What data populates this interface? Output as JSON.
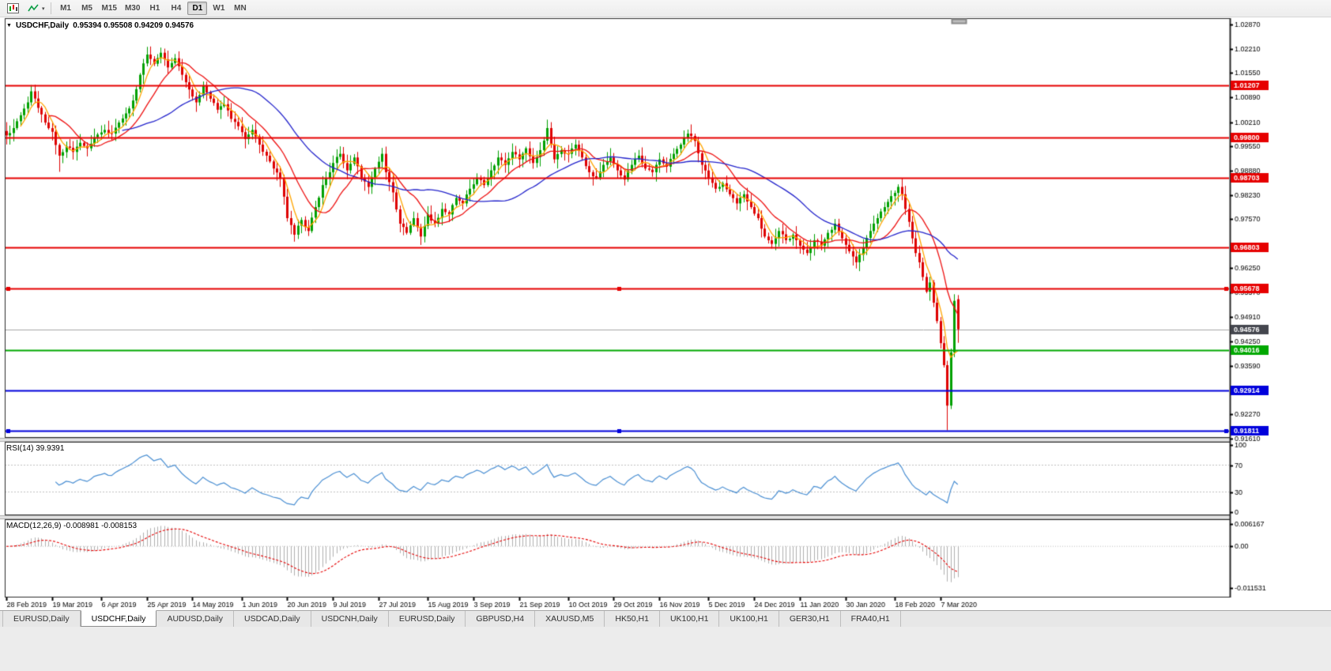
{
  "toolbar": {
    "icons": [
      {
        "name": "chart-window"
      },
      {
        "name": "indicators"
      }
    ],
    "timeframes": [
      "M1",
      "M5",
      "M15",
      "M30",
      "H1",
      "H4",
      "D1",
      "W1",
      "MN"
    ],
    "active_timeframe": "D1"
  },
  "chart": {
    "collapse_icon": "▼",
    "symbol_title": "USDCHF,Daily",
    "ohlc_text": "0.95394 0.95508 0.94209 0.94576"
  },
  "colors": {
    "up": "#00A000",
    "down": "#DE0000",
    "ma_fast": "#FFA500",
    "ma_mid": "#EE1111",
    "ma_slow": "#2424CC",
    "rsi": "#4A8FD3",
    "macd_hist": "#B0B0B0",
    "macd_signal": "#E60000",
    "level_red": "#E60000",
    "level_green": "#00A800",
    "level_blue": "#0000DC",
    "bid_line": "#A8A8A8",
    "bid_label_bg": "#44464E",
    "frame": "#2A2A2A",
    "grid_dash": "#C0C0C0"
  },
  "price_axis": {
    "ticks": [
      "1.02870",
      "1.02210",
      "1.01550",
      "1.00890",
      "1.00210",
      "0.99550",
      "0.98880",
      "0.98230",
      "0.97570",
      "0.96250",
      "0.95570",
      "0.94910",
      "0.94250",
      "0.93590",
      "0.92270",
      "0.91610"
    ]
  },
  "levels": [
    {
      "price": 1.01207,
      "label": "1.01207",
      "color_key": "level_red",
      "handles": false
    },
    {
      "price": 0.998,
      "label": "0.99800",
      "color_key": "level_red",
      "handles": false
    },
    {
      "price": 0.98703,
      "label": "0.98703",
      "color_key": "level_red",
      "handles": false
    },
    {
      "price": 0.96803,
      "label": "0.96803",
      "color_key": "level_red",
      "handles": false
    },
    {
      "price": 0.95678,
      "label": "0.95678",
      "color_key": "level_red",
      "handles": true
    },
    {
      "price": 0.94016,
      "label": "0.94016",
      "color_key": "level_green",
      "handles": false
    },
    {
      "price": 0.92914,
      "label": "0.92914",
      "color_key": "level_blue",
      "handles": false
    },
    {
      "price": 0.91811,
      "label": "0.91811",
      "color_key": "level_blue",
      "handles": true
    }
  ],
  "bid": {
    "price": 0.94576,
    "label": "0.94576"
  },
  "chart_data": {
    "type": "candlestick",
    "symbol": "USDCHF",
    "timeframe": "Daily",
    "title": "USDCHF,Daily",
    "last_ohlc": {
      "open": 0.95394,
      "high": 0.95508,
      "low": 0.94209,
      "close": 0.94576
    },
    "bar_count": 272,
    "y_range": [
      0.9161,
      1.0287
    ],
    "close_anchors": [
      [
        0,
        0.9985
      ],
      [
        2,
        1.0005
      ],
      [
        4,
        1.004
      ],
      [
        6,
        1.0075
      ],
      [
        7,
        1.0105
      ],
      [
        9,
        1.006
      ],
      [
        11,
        1.002
      ],
      [
        13,
        0.9995
      ],
      [
        15,
        0.993
      ],
      [
        17,
        0.9955
      ],
      [
        19,
        0.994
      ],
      [
        21,
        0.9965
      ],
      [
        23,
        0.995
      ],
      [
        25,
        0.998
      ],
      [
        28,
        1.0
      ],
      [
        30,
        0.999
      ],
      [
        32,
        1.002
      ],
      [
        34,
        1.0045
      ],
      [
        36,
        1.008
      ],
      [
        38,
        1.015
      ],
      [
        40,
        1.0205
      ],
      [
        42,
        1.018
      ],
      [
        44,
        1.021
      ],
      [
        46,
        1.017
      ],
      [
        48,
        1.0195
      ],
      [
        50,
        1.015
      ],
      [
        52,
        1.011
      ],
      [
        54,
        1.0075
      ],
      [
        56,
        1.012
      ],
      [
        58,
        1.0085
      ],
      [
        60,
        1.0055
      ],
      [
        62,
        1.007
      ],
      [
        64,
        1.003
      ],
      [
        66,
        1.001
      ],
      [
        68,
        0.9975
      ],
      [
        70,
        1.0
      ],
      [
        72,
        0.996
      ],
      [
        74,
        0.993
      ],
      [
        76,
        0.9895
      ],
      [
        78,
        0.987
      ],
      [
        80,
        0.976
      ],
      [
        82,
        0.9715
      ],
      [
        84,
        0.9755
      ],
      [
        86,
        0.9725
      ],
      [
        88,
        0.979
      ],
      [
        90,
        0.985
      ],
      [
        92,
        0.9885
      ],
      [
        93,
        0.991
      ],
      [
        95,
        0.9935
      ],
      [
        97,
        0.989
      ],
      [
        99,
        0.9925
      ],
      [
        101,
        0.987
      ],
      [
        103,
        0.9845
      ],
      [
        105,
        0.9895
      ],
      [
        107,
        0.9935
      ],
      [
        108,
        0.9885
      ],
      [
        110,
        0.983
      ],
      [
        112,
        0.9745
      ],
      [
        114,
        0.972
      ],
      [
        116,
        0.976
      ],
      [
        118,
        0.971
      ],
      [
        120,
        0.977
      ],
      [
        122,
        0.9745
      ],
      [
        124,
        0.9785
      ],
      [
        126,
        0.977
      ],
      [
        128,
        0.9815
      ],
      [
        130,
        0.98
      ],
      [
        132,
        0.984
      ],
      [
        134,
        0.987
      ],
      [
        136,
        0.985
      ],
      [
        138,
        0.989
      ],
      [
        140,
        0.9925
      ],
      [
        142,
        0.9905
      ],
      [
        144,
        0.994
      ],
      [
        146,
        0.992
      ],
      [
        148,
        0.995
      ],
      [
        150,
        0.991
      ],
      [
        152,
        0.9945
      ],
      [
        154,
        1.0005
      ],
      [
        156,
        0.992
      ],
      [
        158,
        0.9945
      ],
      [
        160,
        0.9935
      ],
      [
        162,
        0.996
      ],
      [
        164,
        0.9925
      ],
      [
        166,
        0.9885
      ],
      [
        168,
        0.987
      ],
      [
        170,
        0.9905
      ],
      [
        172,
        0.9925
      ],
      [
        174,
        0.989
      ],
      [
        176,
        0.9865
      ],
      [
        178,
        0.9905
      ],
      [
        180,
        0.993
      ],
      [
        182,
        0.9895
      ],
      [
        184,
        0.9885
      ],
      [
        186,
        0.992
      ],
      [
        188,
        0.99
      ],
      [
        190,
        0.9935
      ],
      [
        192,
        0.996
      ],
      [
        194,
        0.999
      ],
      [
        196,
        0.997
      ],
      [
        198,
        0.9905
      ],
      [
        200,
        0.987
      ],
      [
        202,
        0.984
      ],
      [
        204,
        0.9855
      ],
      [
        206,
        0.9825
      ],
      [
        208,
        0.98
      ],
      [
        210,
        0.9825
      ],
      [
        212,
        0.979
      ],
      [
        214,
        0.976
      ],
      [
        216,
        0.971
      ],
      [
        218,
        0.969
      ],
      [
        220,
        0.9725
      ],
      [
        222,
        0.97
      ],
      [
        224,
        0.9715
      ],
      [
        226,
        0.9685
      ],
      [
        228,
        0.9665
      ],
      [
        230,
        0.97
      ],
      [
        232,
        0.9685
      ],
      [
        234,
        0.972
      ],
      [
        236,
        0.9745
      ],
      [
        238,
        0.9705
      ],
      [
        240,
        0.967
      ],
      [
        242,
        0.964
      ],
      [
        244,
        0.968
      ],
      [
        246,
        0.9725
      ],
      [
        248,
        0.976
      ],
      [
        250,
        0.979
      ],
      [
        252,
        0.982
      ],
      [
        254,
        0.9845
      ],
      [
        255,
        0.9825
      ],
      [
        256,
        0.9785
      ],
      [
        257,
        0.975
      ],
      [
        258,
        0.9705
      ],
      [
        259,
        0.9665
      ],
      [
        260,
        0.964
      ],
      [
        261,
        0.96
      ],
      [
        262,
        0.956
      ],
      [
        263,
        0.9585
      ],
      [
        264,
        0.953
      ],
      [
        265,
        0.948
      ],
      [
        266,
        0.942
      ],
      [
        267,
        0.936
      ],
      [
        268,
        0.925
      ],
      [
        269,
        0.9395
      ],
      [
        270,
        0.9535
      ],
      [
        271,
        0.94576
      ]
    ],
    "high_overrides": [
      [
        7,
        1.0122
      ],
      [
        40,
        1.0226
      ],
      [
        44,
        1.0224
      ],
      [
        107,
        0.9951
      ],
      [
        154,
        1.0028
      ],
      [
        194,
        1.0001
      ],
      [
        254,
        0.9852
      ],
      [
        270,
        0.9553
      ]
    ],
    "low_overrides": [
      [
        15,
        0.9886
      ],
      [
        82,
        0.9696
      ],
      [
        118,
        0.9687
      ],
      [
        228,
        0.9658
      ],
      [
        242,
        0.9623
      ],
      [
        268,
        0.9183
      ]
    ],
    "moving_averages": [
      {
        "period": 5,
        "color_key": "ma_fast"
      },
      {
        "period": 13,
        "color_key": "ma_mid"
      },
      {
        "period": 34,
        "color_key": "ma_slow"
      }
    ],
    "indicators": [
      {
        "type": "rsi",
        "label": "RSI(14) 39.9391",
        "period": 14,
        "value": 39.9391,
        "levels": [
          70,
          30
        ],
        "scale_ticks": [
          "100",
          "70",
          "30",
          "0"
        ]
      },
      {
        "type": "macd",
        "label": "MACD(12,26,9) -0.008981 -0.008153",
        "fast": 12,
        "slow": 26,
        "signal": 9,
        "macd_value": -0.008981,
        "signal_value": -0.008153,
        "scale_ticks": [
          "0.006167",
          "0.00",
          "-0.011531"
        ],
        "range": [
          -0.011531,
          0.006167
        ]
      }
    ]
  },
  "date_axis": {
    "labels": [
      "28 Feb 2019",
      "19 Mar 2019",
      "6 Apr 2019",
      "25 Apr 2019",
      "14 May 2019",
      "1 Jun 2019",
      "20 Jun 2019",
      "9 Jul 2019",
      "27 Jul 2019",
      "15 Aug 2019",
      "3 Sep 2019",
      "21 Sep 2019",
      "10 Oct 2019",
      "29 Oct 2019",
      "16 Nov 2019",
      "5 Dec 2019",
      "24 Dec 2019",
      "11 Jan 2020",
      "30 Jan 2020",
      "18 Feb 2020",
      "7 Mar 2020"
    ]
  },
  "tabs": {
    "items": [
      {
        "label": "EURUSD,Daily",
        "active": false
      },
      {
        "label": "USDCHF,Daily",
        "active": true
      },
      {
        "label": "AUDUSD,Daily",
        "active": false
      },
      {
        "label": "USDCAD,Daily",
        "active": false
      },
      {
        "label": "USDCNH,Daily",
        "active": false
      },
      {
        "label": "EURUSD,Daily",
        "active": false
      },
      {
        "label": "GBPUSD,H4",
        "active": false
      },
      {
        "label": "XAUUSD,M5",
        "active": false
      },
      {
        "label": "HK50,H1",
        "active": false
      },
      {
        "label": "UK100,H1",
        "active": false
      },
      {
        "label": "UK100,H1",
        "active": false
      },
      {
        "label": "GER30,H1",
        "active": false
      },
      {
        "label": "FRA40,H1",
        "active": false
      }
    ]
  }
}
